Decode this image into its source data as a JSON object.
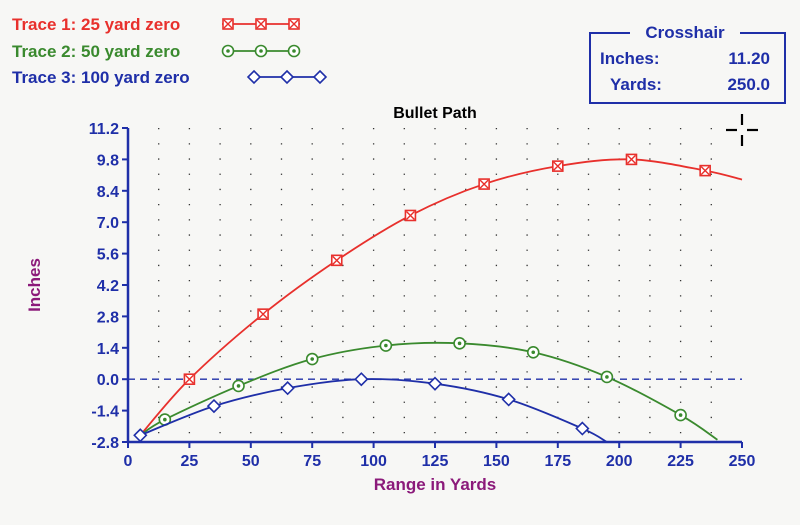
{
  "legend": {
    "items": [
      {
        "label": "Trace 1:  25 yard zero",
        "color": "#e8302c",
        "marker": "boxed-x"
      },
      {
        "label": "Trace 2:  50 yard zero",
        "color": "#3a8a2e",
        "marker": "circle-dot"
      },
      {
        "label": "Trace 3:  100 yard zero",
        "color": "#1f2fa8",
        "marker": "diamond"
      }
    ]
  },
  "crosshair_box": {
    "title": "Crosshair",
    "inches_label": "Inches:",
    "inches_value": "11.20",
    "yards_label": "Yards:",
    "yards_value": "250.0"
  },
  "colors": {
    "axis_label": "#8b1a7a",
    "axis": "#1f2fa8",
    "title": "#000000",
    "zero_line": "#1f2fa8"
  },
  "icons": {
    "crosshair": "crosshair-icon"
  },
  "chart_data": {
    "type": "line",
    "title": "Bullet Path",
    "xlabel": "Range in Yards",
    "ylabel": "Inches",
    "xlim": [
      0,
      250
    ],
    "ylim": [
      -2.8,
      11.2
    ],
    "xticks": [
      "0",
      "25",
      "50",
      "75",
      "100",
      "125",
      "150",
      "175",
      "200",
      "225",
      "250"
    ],
    "yticks": [
      "11.2",
      "9.8",
      "8.4",
      "7.0",
      "5.6",
      "4.2",
      "2.8",
      "1.4",
      "0.0",
      "-1.4",
      "-2.8"
    ],
    "grid": "dotted",
    "zero_line": true,
    "crosshair": {
      "x": 250.0,
      "y": 11.2
    },
    "series": [
      {
        "name": "Trace 1:  25 yard zero",
        "color": "#e8302c",
        "marker": "boxed-x",
        "x": [
          5,
          25,
          55,
          85,
          115,
          145,
          175,
          205,
          235,
          250
        ],
        "y": [
          -2.5,
          0.0,
          2.9,
          5.3,
          7.3,
          8.7,
          9.5,
          9.8,
          9.3,
          8.9
        ],
        "marker_x": [
          25,
          55,
          85,
          115,
          145,
          175,
          205,
          235
        ]
      },
      {
        "name": "Trace 2:  50 yard zero",
        "color": "#3a8a2e",
        "marker": "circle-dot",
        "x": [
          5,
          15,
          45,
          75,
          105,
          135,
          165,
          195,
          225,
          240
        ],
        "y": [
          -2.5,
          -1.8,
          -0.3,
          0.9,
          1.5,
          1.6,
          1.2,
          0.1,
          -1.6,
          -2.7
        ],
        "marker_x": [
          15,
          45,
          75,
          105,
          135,
          165,
          195,
          225
        ]
      },
      {
        "name": "Trace 3:  100 yard zero",
        "color": "#1f2fa8",
        "marker": "diamond",
        "x": [
          5,
          35,
          65,
          95,
          125,
          155,
          185,
          195
        ],
        "y": [
          -2.5,
          -1.2,
          -0.4,
          0.0,
          -0.2,
          -0.9,
          -2.2,
          -2.8
        ],
        "marker_x": [
          5,
          35,
          65,
          95,
          125,
          155,
          185
        ]
      }
    ]
  }
}
